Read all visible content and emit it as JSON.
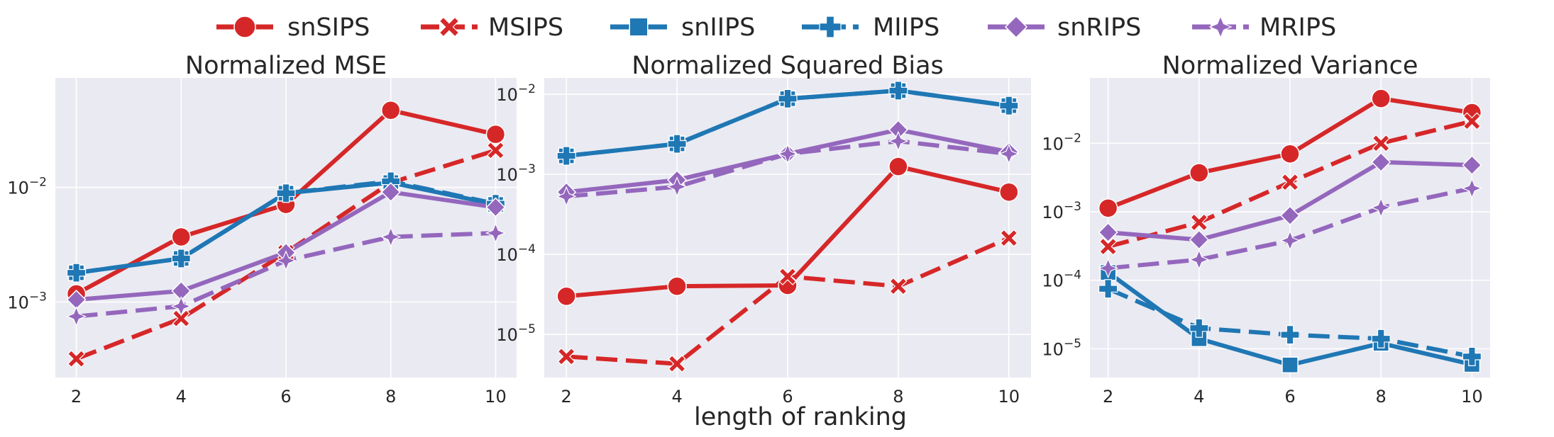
{
  "legend": {
    "entries": [
      {
        "name": "snSIPS",
        "color": "#d62728",
        "dash": "solid",
        "marker": "circle"
      },
      {
        "name": "MSIPS",
        "color": "#d62728",
        "dash": "dashed",
        "marker": "x"
      },
      {
        "name": "snIIPS",
        "color": "#1f77b4",
        "dash": "solid",
        "marker": "square"
      },
      {
        "name": "MIIPS",
        "color": "#1f77b4",
        "dash": "dashed",
        "marker": "plus"
      },
      {
        "name": "snRIPS",
        "color": "#9467bd",
        "dash": "solid",
        "marker": "diamond"
      },
      {
        "name": "MRIPS",
        "color": "#9467bd",
        "dash": "dashed",
        "marker": "star"
      }
    ],
    "placement": "top-center"
  },
  "xlabel": "length of ranking",
  "chart_data": [
    {
      "type": "line",
      "title": "Normalized MSE",
      "x": [
        2,
        4,
        6,
        8,
        10
      ],
      "xticks": [
        "2",
        "4",
        "6",
        "8",
        "10"
      ],
      "yscale": "log",
      "ylim": [
        0.00022,
        0.09
      ],
      "yticks": [
        {
          "value": 0.001,
          "base": "10",
          "exp": "−3"
        },
        {
          "value": 0.01,
          "base": "10",
          "exp": "−2"
        }
      ],
      "grid": true,
      "series": [
        {
          "name": "snSIPS",
          "values": [
            0.00118,
            0.0037,
            0.0071,
            0.047,
            0.029
          ]
        },
        {
          "name": "MSIPS",
          "values": [
            0.00032,
            0.00072,
            0.0027,
            0.011,
            0.021
          ]
        },
        {
          "name": "snIIPS",
          "values": [
            0.0018,
            0.0024,
            0.0089,
            0.011,
            0.0071
          ]
        },
        {
          "name": "MIIPS",
          "values": [
            0.0018,
            0.0024,
            0.0089,
            0.0113,
            0.0072
          ]
        },
        {
          "name": "snRIPS",
          "values": [
            0.00105,
            0.00125,
            0.0027,
            0.0091,
            0.0067
          ]
        },
        {
          "name": "MRIPS",
          "values": [
            0.00075,
            0.00092,
            0.0023,
            0.0037,
            0.004
          ]
        }
      ]
    },
    {
      "type": "line",
      "title": "Normalized Squared Bias",
      "x": [
        2,
        4,
        6,
        8,
        10
      ],
      "xticks": [
        "2",
        "4",
        "6",
        "8",
        "10"
      ],
      "yscale": "log",
      "ylim": [
        2.9e-06,
        0.016
      ],
      "yticks": [
        {
          "value": 1e-05,
          "base": "10",
          "exp": "−5"
        },
        {
          "value": 0.0001,
          "base": "10",
          "exp": "−4"
        },
        {
          "value": 0.001,
          "base": "10",
          "exp": "−3"
        },
        {
          "value": 0.01,
          "base": "10",
          "exp": "−2"
        }
      ],
      "grid": true,
      "series": [
        {
          "name": "snSIPS",
          "values": [
            3e-05,
            4e-05,
            4.1e-05,
            0.00125,
            0.0006
          ]
        },
        {
          "name": "MSIPS",
          "values": [
            5.3e-06,
            4.3e-06,
            5.3e-05,
            4e-05,
            0.00016
          ]
        },
        {
          "name": "snIIPS",
          "values": [
            0.0017,
            0.0024,
            0.0088,
            0.0111,
            0.0072
          ]
        },
        {
          "name": "MIIPS",
          "values": [
            0.0017,
            0.0024,
            0.0088,
            0.0111,
            0.0072
          ]
        },
        {
          "name": "snRIPS",
          "values": [
            0.0006,
            0.00085,
            0.0018,
            0.0036,
            0.0019
          ]
        },
        {
          "name": "MRIPS",
          "values": [
            0.00053,
            0.0007,
            0.0018,
            0.0026,
            0.0018
          ]
        }
      ]
    },
    {
      "type": "line",
      "title": "Normalized Variance",
      "x": [
        2,
        4,
        6,
        8,
        10
      ],
      "xticks": [
        "2",
        "4",
        "6",
        "8",
        "10"
      ],
      "yscale": "log",
      "ylim": [
        3.8e-06,
        0.09
      ],
      "yticks": [
        {
          "value": 1e-05,
          "base": "10",
          "exp": "−5"
        },
        {
          "value": 0.0001,
          "base": "10",
          "exp": "−4"
        },
        {
          "value": 0.001,
          "base": "10",
          "exp": "−3"
        },
        {
          "value": 0.01,
          "base": "10",
          "exp": "−2"
        }
      ],
      "grid": true,
      "series": [
        {
          "name": "snSIPS",
          "values": [
            0.00113,
            0.0037,
            0.007,
            0.045,
            0.028
          ]
        },
        {
          "name": "MSIPS",
          "values": [
            0.00031,
            0.0007,
            0.0027,
            0.01,
            0.021
          ]
        },
        {
          "name": "snIIPS",
          "values": [
            0.00013,
            1.4e-05,
            5.8e-06,
            1.2e-05,
            5.9e-06
          ]
        },
        {
          "name": "MIIPS",
          "values": [
            7.5e-05,
            2e-05,
            1.6e-05,
            1.4e-05,
            7.7e-06
          ]
        },
        {
          "name": "snRIPS",
          "values": [
            0.0005,
            0.00039,
            0.00088,
            0.0053,
            0.0048
          ]
        },
        {
          "name": "MRIPS",
          "values": [
            0.00015,
            0.0002,
            0.00038,
            0.00115,
            0.0022
          ]
        }
      ]
    }
  ]
}
